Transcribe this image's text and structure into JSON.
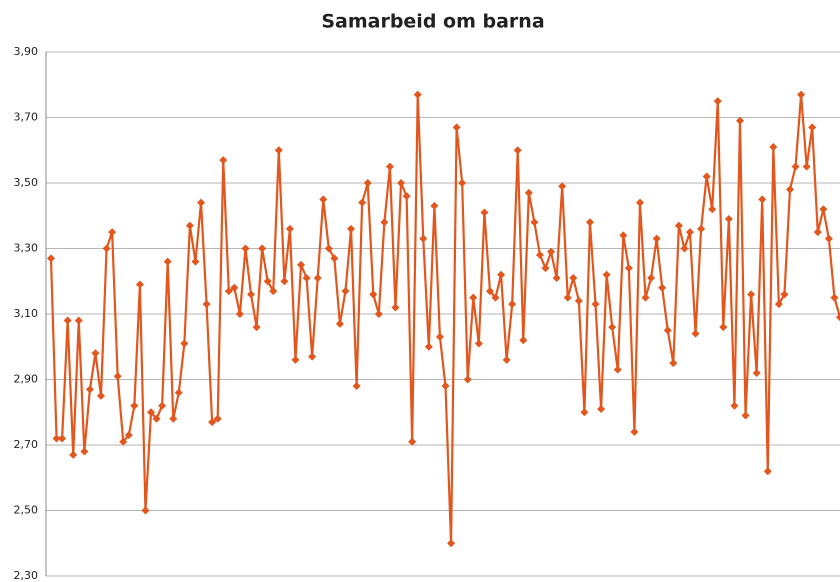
{
  "chart_data": {
    "type": "line",
    "title": "Samarbeid om barna",
    "series": [
      {
        "color": "#e2571e",
        "values": [
          3.27,
          2.72,
          2.72,
          3.08,
          2.67,
          3.08,
          2.68,
          2.87,
          2.98,
          2.85,
          3.3,
          3.35,
          2.91,
          2.71,
          2.73,
          2.82,
          3.19,
          2.5,
          2.8,
          2.78,
          2.82,
          3.26,
          2.78,
          2.86,
          3.01,
          3.37,
          3.26,
          3.44,
          3.13,
          2.77,
          2.78,
          3.57,
          3.17,
          3.18,
          3.1,
          3.3,
          3.16,
          3.06,
          3.3,
          3.2,
          3.17,
          3.6,
          3.2,
          3.36,
          2.96,
          3.25,
          3.21,
          2.97,
          3.21,
          3.45,
          3.3,
          3.27,
          3.07,
          3.17,
          3.36,
          2.88,
          3.44,
          3.5,
          3.16,
          3.1,
          3.38,
          3.55,
          3.12,
          3.5,
          3.46,
          2.71,
          3.77,
          3.33,
          3.0,
          3.43,
          3.03,
          2.88,
          2.4,
          3.67,
          3.5,
          2.9,
          3.15,
          3.01,
          3.41,
          3.17,
          3.15,
          3.22,
          2.96,
          3.13,
          3.6,
          3.02,
          3.47,
          3.38,
          3.28,
          3.24,
          3.29,
          3.21,
          3.49,
          3.15,
          3.21,
          3.14,
          2.8,
          3.38,
          3.13,
          2.81,
          3.22,
          3.06,
          2.93,
          3.34,
          3.24,
          2.74,
          3.44,
          3.15,
          3.21,
          3.33,
          3.18,
          3.05,
          2.95,
          3.37,
          3.3,
          3.35,
          3.04,
          3.36,
          3.52,
          3.42,
          3.75,
          3.06,
          3.39,
          2.82,
          3.69,
          2.79,
          3.16,
          2.92,
          3.45,
          2.62,
          3.61,
          3.13,
          3.16,
          3.48,
          3.55,
          3.77,
          3.55,
          3.67,
          3.35,
          3.42,
          3.33,
          3.15,
          3.09
        ]
      }
    ],
    "ylim": [
      2.3,
      3.9
    ],
    "yticks": [
      {
        "value": 2.3,
        "label": "2,30"
      },
      {
        "value": 2.5,
        "label": "2,50"
      },
      {
        "value": 2.7,
        "label": "2,70"
      },
      {
        "value": 2.9,
        "label": "2,90"
      },
      {
        "value": 3.1,
        "label": "3,10"
      },
      {
        "value": 3.3,
        "label": "3,30"
      },
      {
        "value": 3.5,
        "label": "3,50"
      },
      {
        "value": 3.7,
        "label": "3,70"
      },
      {
        "value": 3.9,
        "label": "3,90"
      }
    ],
    "grid": true
  }
}
